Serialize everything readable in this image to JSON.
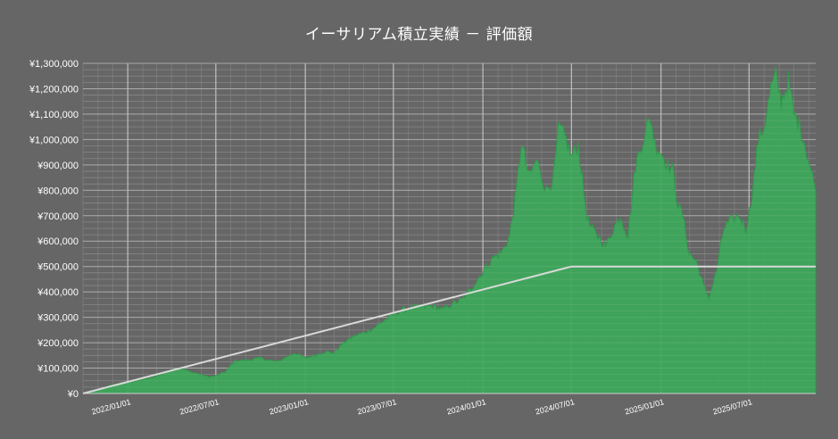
{
  "chart_data": {
    "type": "area",
    "title": "イーサリアム積立実績 － 評価額",
    "xlabel": "",
    "ylabel": "",
    "ylim": [
      0,
      1300000
    ],
    "xlim": [
      "2021-10-01",
      "2025-11-15"
    ],
    "grid": true,
    "legend": "none",
    "y_ticks": [
      "¥0",
      "¥100,000",
      "¥200,000",
      "¥300,000",
      "¥400,000",
      "¥500,000",
      "¥600,000",
      "¥700,000",
      "¥800,000",
      "¥900,000",
      "¥1,000,000",
      "¥1,100,000",
      "¥1,200,000",
      "¥1,300,000"
    ],
    "x_ticks": [
      "2022/01/01",
      "2022/07/01",
      "2023/01/01",
      "2023/07/01",
      "2024/01/01",
      "2024/07/01",
      "2025/01/01",
      "2025/07/01"
    ],
    "colors": {
      "background": "#666666",
      "area_fill": "#3da85a",
      "area_edge": "#2f9a4b",
      "invested_line": "#d9d9d9",
      "grid": "#8c8c8c"
    },
    "series": [
      {
        "kind": "area",
        "x": [
          "2021-10-01",
          "2021-11-01",
          "2021-12-01",
          "2022-01-01",
          "2022-01-20",
          "2022-02-15",
          "2022-03-10",
          "2022-04-01",
          "2022-04-20",
          "2022-05-10",
          "2022-06-01",
          "2022-06-18",
          "2022-07-01",
          "2022-07-20",
          "2022-08-10",
          "2022-09-01",
          "2022-09-15",
          "2022-10-01",
          "2022-10-20",
          "2022-11-05",
          "2022-11-20",
          "2022-12-10",
          "2023-01-01",
          "2023-01-20",
          "2023-02-10",
          "2023-03-01",
          "2023-03-20",
          "2023-04-10",
          "2023-05-01",
          "2023-05-20",
          "2023-06-10",
          "2023-07-01",
          "2023-07-20",
          "2023-08-10",
          "2023-09-01",
          "2023-09-20",
          "2023-10-10",
          "2023-11-01",
          "2023-11-20",
          "2023-12-10",
          "2024-01-01",
          "2024-01-20",
          "2024-02-10",
          "2024-02-25",
          "2024-03-10",
          "2024-03-20",
          "2024-04-05",
          "2024-04-20",
          "2024-05-10",
          "2024-05-25",
          "2024-06-05",
          "2024-06-20",
          "2024-07-01",
          "2024-07-15",
          "2024-08-01",
          "2024-08-10",
          "2024-08-25",
          "2024-09-10",
          "2024-09-25",
          "2024-10-10",
          "2024-10-25",
          "2024-11-10",
          "2024-11-25",
          "2024-12-10",
          "2024-12-20",
          "2025-01-01",
          "2025-01-15",
          "2025-01-25",
          "2025-02-05",
          "2025-02-15",
          "2025-02-28",
          "2025-03-15",
          "2025-03-30",
          "2025-04-10",
          "2025-04-25",
          "2025-05-10",
          "2025-05-25",
          "2025-06-10",
          "2025-06-25",
          "2025-07-05",
          "2025-07-20",
          "2025-08-01",
          "2025-08-15",
          "2025-08-25",
          "2025-09-05",
          "2025-09-20",
          "2025-10-01",
          "2025-10-15",
          "2025-11-15"
        ],
        "values": [
          0,
          15000,
          35000,
          45000,
          50000,
          60000,
          75000,
          95000,
          100000,
          85000,
          75000,
          65000,
          70000,
          85000,
          130000,
          130000,
          135000,
          140000,
          130000,
          125000,
          140000,
          160000,
          140000,
          150000,
          165000,
          160000,
          200000,
          225000,
          240000,
          255000,
          285000,
          310000,
          330000,
          340000,
          340000,
          345000,
          330000,
          355000,
          370000,
          420000,
          480000,
          530000,
          560000,
          620000,
          800000,
          990000,
          850000,
          920000,
          800000,
          850000,
          1050000,
          1000000,
          930000,
          980000,
          700000,
          650000,
          620000,
          580000,
          650000,
          700000,
          620000,
          900000,
          1000000,
          1090000,
          980000,
          950000,
          900000,
          880000,
          740000,
          700000,
          550000,
          520000,
          420000,
          380000,
          480000,
          650000,
          680000,
          700000,
          650000,
          750000,
          1000000,
          1050000,
          1200000,
          1250000,
          1150000,
          1230000,
          1100000,
          1050000,
          800000
        ]
      },
      {
        "kind": "line",
        "name": "",
        "x": [
          "2021-10-01",
          "2024-07-01",
          "2025-11-15"
        ],
        "values": [
          0,
          500000,
          500000
        ]
      }
    ]
  }
}
